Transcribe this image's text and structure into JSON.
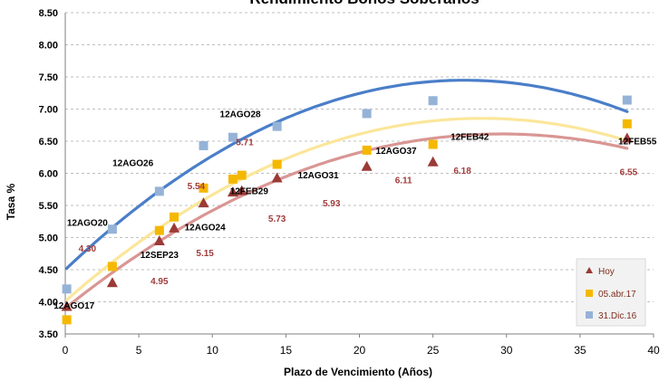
{
  "chart_data": {
    "type": "scatter",
    "title": "Rendimiento Bonos Soberanos",
    "xlabel": "Plazo de Vencimiento  (Años)",
    "ylabel": "Tasa %",
    "xlim": [
      0,
      40
    ],
    "ylim": [
      3.5,
      8.5
    ],
    "xticks": [
      "0",
      "5",
      "10",
      "15",
      "20",
      "25",
      "30",
      "35",
      "40"
    ],
    "yticks": [
      "3.50",
      "4.00",
      "4.50",
      "5.00",
      "5.50",
      "6.00",
      "6.50",
      "7.00",
      "7.50",
      "8.00",
      "8.50"
    ],
    "grid": "horizontal dashed",
    "legend_position": "bottom-right",
    "series": [
      {
        "name": "Hoy",
        "marker": "triangle",
        "color": "#9b3a36",
        "trend_color": "#d99694",
        "points": [
          {
            "x": 0.1,
            "y": 3.93
          },
          {
            "x": 3.2,
            "y": 4.3
          },
          {
            "x": 6.4,
            "y": 4.95
          },
          {
            "x": 7.4,
            "y": 5.15
          },
          {
            "x": 9.4,
            "y": 5.54
          },
          {
            "x": 11.4,
            "y": 5.71
          },
          {
            "x": 12.0,
            "y": 5.73
          },
          {
            "x": 14.4,
            "y": 5.93
          },
          {
            "x": 20.5,
            "y": 6.11
          },
          {
            "x": 25.0,
            "y": 6.18
          },
          {
            "x": 38.2,
            "y": 6.55
          }
        ],
        "trend": [
          3.9,
          0.1828,
          -0.00308
        ]
      },
      {
        "name": "05.abr.17",
        "marker": "square",
        "color": "#f5b800",
        "trend_color": "#fbe69a",
        "points": [
          {
            "x": 0.1,
            "y": 3.72
          },
          {
            "x": 3.2,
            "y": 4.55
          },
          {
            "x": 6.4,
            "y": 5.11
          },
          {
            "x": 7.4,
            "y": 5.32
          },
          {
            "x": 9.4,
            "y": 5.77
          },
          {
            "x": 11.4,
            "y": 5.91
          },
          {
            "x": 12.0,
            "y": 5.97
          },
          {
            "x": 14.4,
            "y": 6.14
          },
          {
            "x": 20.5,
            "y": 6.36
          },
          {
            "x": 25.0,
            "y": 6.45
          },
          {
            "x": 38.2,
            "y": 6.77
          }
        ],
        "trend": [
          4.01,
          0.201,
          -0.00355
        ]
      },
      {
        "name": "31.Dic.16",
        "marker": "square",
        "color": "#95b3d7",
        "trend_color": "#4a7ec8",
        "points": [
          {
            "x": 0.1,
            "y": 4.2
          },
          {
            "x": 3.2,
            "y": 5.13
          },
          {
            "x": 6.4,
            "y": 5.72
          },
          {
            "x": 9.4,
            "y": 6.43
          },
          {
            "x": 11.4,
            "y": 6.56
          },
          {
            "x": 14.4,
            "y": 6.73
          },
          {
            "x": 20.5,
            "y": 6.93
          },
          {
            "x": 25.0,
            "y": 7.13
          },
          {
            "x": 38.2,
            "y": 7.14
          }
        ],
        "trend": [
          4.5,
          0.2172,
          -0.004
        ]
      }
    ],
    "annotations": {
      "bond_labels": [
        {
          "text": "12AGO17",
          "x": 0.6,
          "y": 3.95
        },
        {
          "text": "12AGO20",
          "x": 1.5,
          "y": 5.24
        },
        {
          "text": "12SEP23",
          "x": 6.4,
          "y": 4.74
        },
        {
          "text": "12AGO24",
          "x": 9.5,
          "y": 5.17
        },
        {
          "text": "12AGO26",
          "x": 4.6,
          "y": 6.17
        },
        {
          "text": "12FEB29",
          "x": 12.5,
          "y": 5.73
        },
        {
          "text": "12AGO28",
          "x": 11.9,
          "y": 6.93
        },
        {
          "text": "12AGO31",
          "x": 17.2,
          "y": 5.98
        },
        {
          "text": "12AGO37",
          "x": 22.5,
          "y": 6.36
        },
        {
          "text": "12FEB42",
          "x": 27.5,
          "y": 6.58
        },
        {
          "text": "12FEB55",
          "x": 38.9,
          "y": 6.51
        }
      ],
      "value_labels": [
        {
          "text": "4.30",
          "x": 1.5,
          "y": 4.84
        },
        {
          "text": "4.95",
          "x": 6.4,
          "y": 4.33
        },
        {
          "text": "5.15",
          "x": 9.5,
          "y": 4.77
        },
        {
          "text": "5.54",
          "x": 8.9,
          "y": 5.81
        },
        {
          "text": "5.71",
          "x": 12.2,
          "y": 6.49
        },
        {
          "text": "5.73",
          "x": 14.4,
          "y": 5.3
        },
        {
          "text": "5.93",
          "x": 18.1,
          "y": 5.54
        },
        {
          "text": "6.11",
          "x": 23.0,
          "y": 5.9
        },
        {
          "text": "6.18",
          "x": 27.0,
          "y": 6.05
        },
        {
          "text": "6.55",
          "x": 38.3,
          "y": 6.03
        }
      ]
    }
  }
}
